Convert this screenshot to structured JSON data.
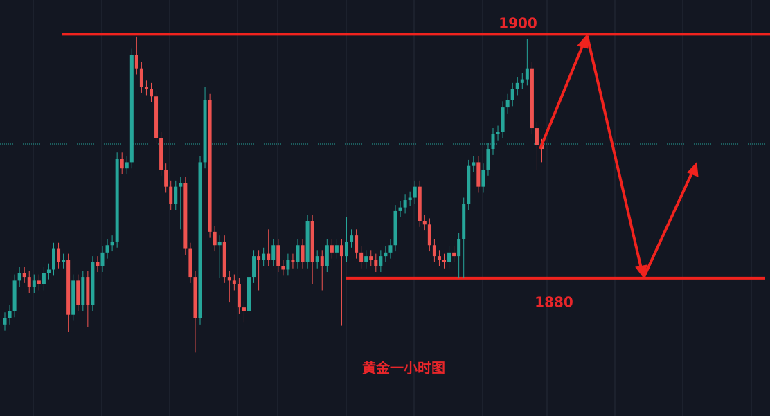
{
  "chart_data": {
    "type": "candlestick",
    "title": "黄金一小时图",
    "up_color": "#26a69a",
    "down_color": "#ef5350",
    "level_color": "#f0231e",
    "ylim": [
      1868.7,
      1902.8
    ],
    "levels": [
      1900,
      1880
    ],
    "current_price": 1891.0,
    "open": [
      1876.2,
      1876.7,
      1877.3,
      1879.8,
      1880.4,
      1880.1,
      1879.3,
      1879.8,
      1879.5,
      1880.4,
      1880.7,
      1882.4,
      1881.3,
      1881.5,
      1877.0,
      1879.8,
      1877.8,
      1880.1,
      1877.8,
      1881.3,
      1881.0,
      1882.1,
      1882.7,
      1883.0,
      1889.8,
      1889.0,
      1889.5,
      1898.3,
      1897.2,
      1895.7,
      1895.5,
      1894.9,
      1891.5,
      1888.9,
      1887.5,
      1886.1,
      1887.5,
      1887.8,
      1882.4,
      1880.1,
      1876.7,
      1889.5,
      1894.6,
      1883.8,
      1882.7,
      1883.0,
      1880.1,
      1879.8,
      1879.5,
      1877.6,
      1877.3,
      1880.1,
      1881.8,
      1881.5,
      1882.0,
      1881.5,
      1882.7,
      1881.0,
      1880.7,
      1881.5,
      1881.3,
      1882.7,
      1881.3,
      1884.7,
      1881.3,
      1881.8,
      1881.0,
      1882.7,
      1882.1,
      1882.7,
      1881.8,
      1883.0,
      1883.5,
      1882.1,
      1881.3,
      1881.8,
      1881.5,
      1881.0,
      1881.8,
      1882.1,
      1882.7,
      1885.5,
      1885.8,
      1886.4,
      1886.6,
      1887.5,
      1884.7,
      1884.4,
      1882.7,
      1881.8,
      1881.5,
      1881.3,
      1882.1,
      1881.8,
      1883.2,
      1886.1,
      1889.2,
      1889.5,
      1887.5,
      1888.9,
      1890.6,
      1891.8,
      1892.0,
      1894.0,
      1894.6,
      1895.5,
      1896.0,
      1896.3,
      1897.2,
      1892.3,
      1890.9
    ],
    "high": [
      1877.2,
      1877.8,
      1880.3,
      1880.9,
      1880.9,
      1880.6,
      1880.3,
      1880.3,
      1880.9,
      1881.2,
      1882.9,
      1882.9,
      1882.0,
      1882.0,
      1880.3,
      1880.3,
      1880.6,
      1880.6,
      1881.8,
      1881.8,
      1882.6,
      1883.2,
      1883.5,
      1890.3,
      1890.3,
      1890.0,
      1898.8,
      1899.8,
      1897.7,
      1896.2,
      1896.0,
      1895.4,
      1892.0,
      1889.4,
      1888.0,
      1888.0,
      1888.3,
      1888.3,
      1882.9,
      1880.6,
      1890.0,
      1895.7,
      1895.1,
      1884.3,
      1883.5,
      1883.5,
      1880.6,
      1880.3,
      1880.0,
      1878.1,
      1880.6,
      1882.3,
      1882.3,
      1882.5,
      1884.0,
      1883.2,
      1883.2,
      1881.5,
      1882.0,
      1882.0,
      1883.2,
      1883.2,
      1885.2,
      1885.2,
      1882.3,
      1882.3,
      1883.2,
      1883.2,
      1883.2,
      1883.2,
      1885.0,
      1884.0,
      1884.0,
      1882.6,
      1882.3,
      1882.3,
      1882.0,
      1882.3,
      1882.6,
      1883.2,
      1886.0,
      1886.3,
      1886.9,
      1887.1,
      1888.0,
      1888.0,
      1885.2,
      1884.9,
      1883.2,
      1882.3,
      1882.0,
      1882.6,
      1882.6,
      1883.7,
      1886.6,
      1889.7,
      1890.0,
      1890.0,
      1889.4,
      1891.1,
      1892.3,
      1892.5,
      1894.5,
      1895.1,
      1896.0,
      1896.5,
      1896.8,
      1899.6,
      1897.7,
      1892.8,
      1891.4
    ],
    "low": [
      1875.7,
      1876.2,
      1876.8,
      1879.3,
      1879.6,
      1878.8,
      1878.8,
      1879.0,
      1879.0,
      1879.9,
      1880.2,
      1880.8,
      1880.8,
      1875.6,
      1876.5,
      1877.3,
      1877.3,
      1876.0,
      1877.3,
      1880.5,
      1880.5,
      1881.6,
      1882.2,
      1882.5,
      1888.5,
      1888.5,
      1889.0,
      1896.7,
      1895.2,
      1895.0,
      1894.4,
      1891.0,
      1888.4,
      1887.0,
      1885.6,
      1885.6,
      1884.0,
      1881.9,
      1879.6,
      1873.9,
      1876.2,
      1889.0,
      1883.3,
      1882.2,
      1880.0,
      1879.6,
      1878.0,
      1879.0,
      1877.1,
      1876.4,
      1876.8,
      1879.6,
      1879.0,
      1881.0,
      1881.0,
      1881.0,
      1880.5,
      1880.2,
      1880.2,
      1880.8,
      1880.8,
      1880.8,
      1880.8,
      1879.5,
      1880.8,
      1879.0,
      1880.5,
      1881.6,
      1881.6,
      1876.1,
      1881.3,
      1882.5,
      1881.6,
      1880.8,
      1880.8,
      1881.0,
      1880.5,
      1880.5,
      1881.3,
      1881.6,
      1882.2,
      1885.0,
      1885.3,
      1885.9,
      1886.1,
      1884.2,
      1883.9,
      1882.2,
      1881.3,
      1881.0,
      1880.8,
      1880.8,
      1881.3,
      1880.0,
      1880.0,
      1885.6,
      1888.7,
      1887.0,
      1887.0,
      1888.4,
      1890.1,
      1891.3,
      1891.5,
      1893.5,
      1894.1,
      1895.0,
      1895.5,
      1895.8,
      1891.8,
      1888.9,
      1889.5
    ],
    "close": [
      1876.7,
      1877.3,
      1879.8,
      1880.4,
      1880.1,
      1879.3,
      1879.8,
      1879.5,
      1880.4,
      1880.7,
      1882.4,
      1881.3,
      1881.5,
      1877.0,
      1879.8,
      1877.8,
      1880.1,
      1877.8,
      1881.3,
      1881.0,
      1882.1,
      1882.7,
      1883.0,
      1889.8,
      1889.0,
      1889.5,
      1898.3,
      1897.2,
      1895.7,
      1895.5,
      1894.9,
      1891.5,
      1888.9,
      1887.5,
      1886.1,
      1887.5,
      1887.8,
      1882.4,
      1880.1,
      1876.7,
      1889.5,
      1894.6,
      1883.8,
      1882.7,
      1883.0,
      1880.1,
      1879.8,
      1879.5,
      1877.6,
      1877.3,
      1880.1,
      1881.8,
      1881.5,
      1882.0,
      1881.5,
      1882.7,
      1881.0,
      1880.7,
      1881.5,
      1881.3,
      1882.7,
      1881.3,
      1884.7,
      1881.3,
      1881.8,
      1881.0,
      1882.7,
      1882.1,
      1882.7,
      1881.8,
      1883.0,
      1883.5,
      1882.1,
      1881.3,
      1881.8,
      1881.5,
      1881.0,
      1881.8,
      1882.1,
      1882.7,
      1885.5,
      1885.8,
      1886.4,
      1886.6,
      1887.5,
      1884.7,
      1884.4,
      1882.7,
      1881.8,
      1881.5,
      1881.3,
      1882.1,
      1881.8,
      1883.2,
      1886.1,
      1889.2,
      1889.5,
      1887.5,
      1888.9,
      1890.6,
      1891.8,
      1892.0,
      1894.0,
      1894.6,
      1895.5,
      1896.0,
      1896.3,
      1897.2,
      1892.3,
      1890.9,
      1890.6
    ]
  }
}
